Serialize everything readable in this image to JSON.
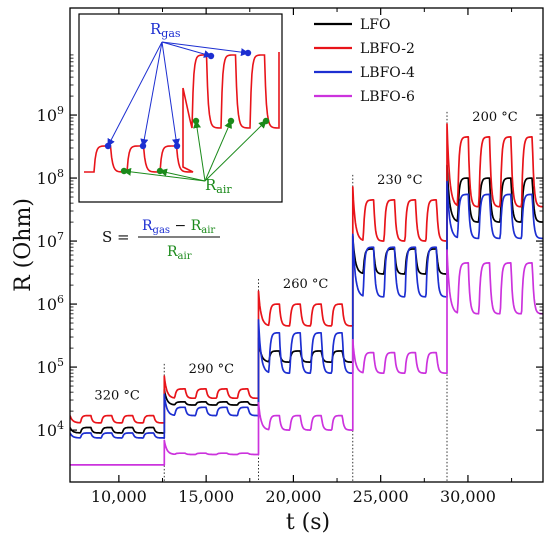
{
  "chart_data": {
    "type": "line",
    "title": "",
    "xlabel": "t (s)",
    "ylabel": "R (Ohm)",
    "y_scale": "log",
    "xlim": [
      7200,
      34300
    ],
    "ylim": [
      1500,
      50000000000
    ],
    "grid": false,
    "legend_position": "top-right",
    "x_ticks": [
      10000,
      15000,
      20000,
      25000,
      30000
    ],
    "x_tick_labels": [
      "10,000",
      "15,000",
      "20,000",
      "25,000",
      "30,000"
    ],
    "y_ticks": [
      10000,
      100000,
      1000000,
      10000000,
      100000000,
      1000000000
    ],
    "y_tick_labels": [
      {
        "base": "10",
        "exp": "4"
      },
      {
        "base": "10",
        "exp": "5"
      },
      {
        "base": "10",
        "exp": "6"
      },
      {
        "base": "10",
        "exp": "7"
      },
      {
        "base": "10",
        "exp": "8"
      },
      {
        "base": "10",
        "exp": "9"
      }
    ],
    "temperature_segments": [
      {
        "label": "320 °C",
        "t_start": 7200,
        "t_end": 12600,
        "pulses": 4
      },
      {
        "label": "290 °C",
        "t_start": 12600,
        "t_end": 18000,
        "pulses": 4
      },
      {
        "label": "260 °C",
        "t_start": 18000,
        "t_end": 23400,
        "pulses": 4
      },
      {
        "label": "230 °C",
        "t_start": 23400,
        "t_end": 28800,
        "pulses": 4
      },
      {
        "label": "200 °C",
        "t_start": 28800,
        "t_end": 34300,
        "pulses": 4
      }
    ],
    "temperature_boundaries": [
      12600,
      18000,
      23400,
      28800
    ],
    "series": [
      {
        "name": "LFO",
        "color": "#000000",
        "air": [
          9000,
          25000,
          120000,
          3000000,
          20000000
        ],
        "gas": [
          11000,
          28000,
          180000,
          7500000,
          100000000
        ]
      },
      {
        "name": "LBFO-2",
        "color": "#e8141a",
        "air": [
          13000,
          32000,
          450000,
          10000000,
          35000000
        ],
        "gas": [
          17000,
          45000,
          1000000,
          45000000,
          450000000
        ]
      },
      {
        "name": "LBFO-4",
        "color": "#1d2fd1",
        "air": [
          7500,
          17000,
          80000,
          1300000,
          11000000
        ],
        "gas": [
          9000,
          23000,
          350000,
          8000000,
          55000000
        ]
      },
      {
        "name": "LBFO-6",
        "color": "#cc33dd",
        "air": [
          2800,
          4100,
          10000,
          80000,
          700000
        ],
        "gas": [
          2800,
          4300,
          17000,
          170000,
          4500000
        ]
      }
    ]
  },
  "inset": {
    "r_gas": {
      "main": "R",
      "sub": "gas"
    },
    "r_air": {
      "main": "R",
      "sub": "air"
    }
  },
  "formula": {
    "lhs": "S =",
    "num_a": {
      "main": "R",
      "sub": "gas"
    },
    "minus": " − ",
    "num_b": {
      "main": "R",
      "sub": "air"
    },
    "den": {
      "main": "R",
      "sub": "air"
    }
  },
  "colors": {
    "gas_annotation": "#1d2fd1",
    "air_annotation": "#1b8a1b",
    "inset_curve": "#e8141a"
  }
}
